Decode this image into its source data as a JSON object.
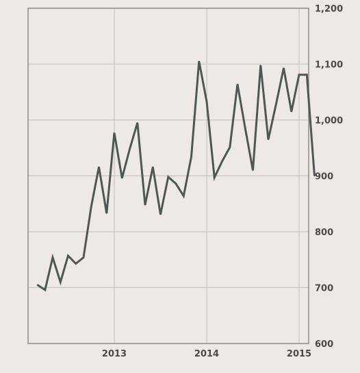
{
  "chart_data": {
    "type": "line",
    "title": "",
    "xlabel": "",
    "ylabel": "",
    "x_ticks": [
      "2013",
      "2014",
      "2015"
    ],
    "y_ticks": [
      "600",
      "700",
      "800",
      "900",
      "1,000",
      "1,100",
      "1,200"
    ],
    "ylim": [
      600,
      1200
    ],
    "grid": true,
    "y_axis_position": "right",
    "line_color": "#4e5753",
    "series": [
      {
        "values": [
          {
            "x": "2012-03",
            "y": 705
          },
          {
            "x": "2012-04",
            "y": 696
          },
          {
            "x": "2012-05",
            "y": 754
          },
          {
            "x": "2012-06",
            "y": 710
          },
          {
            "x": "2012-07",
            "y": 757
          },
          {
            "x": "2012-08",
            "y": 743
          },
          {
            "x": "2012-09",
            "y": 754
          },
          {
            "x": "2012-10",
            "y": 845
          },
          {
            "x": "2012-11",
            "y": 916
          },
          {
            "x": "2012-12",
            "y": 833
          },
          {
            "x": "2013-01",
            "y": 977
          },
          {
            "x": "2013-02",
            "y": 896
          },
          {
            "x": "2013-03",
            "y": 948
          },
          {
            "x": "2013-04",
            "y": 995
          },
          {
            "x": "2013-05",
            "y": 848
          },
          {
            "x": "2013-06",
            "y": 916
          },
          {
            "x": "2013-07",
            "y": 831
          },
          {
            "x": "2013-08",
            "y": 898
          },
          {
            "x": "2013-09",
            "y": 886
          },
          {
            "x": "2013-10",
            "y": 864
          },
          {
            "x": "2013-11",
            "y": 934
          },
          {
            "x": "2013-12",
            "y": 1105
          },
          {
            "x": "2014-01",
            "y": 1033
          },
          {
            "x": "2014-02",
            "y": 897
          },
          {
            "x": "2014-03",
            "y": 926
          },
          {
            "x": "2014-04",
            "y": 951
          },
          {
            "x": "2014-05",
            "y": 1064
          },
          {
            "x": "2014-06",
            "y": 985
          },
          {
            "x": "2014-07",
            "y": 910
          },
          {
            "x": "2014-08",
            "y": 1098
          },
          {
            "x": "2014-09",
            "y": 965
          },
          {
            "x": "2014-10",
            "y": 1028
          },
          {
            "x": "2014-11",
            "y": 1093
          },
          {
            "x": "2014-12",
            "y": 1015
          },
          {
            "x": "2015-01",
            "y": 1081
          },
          {
            "x": "2015-02",
            "y": 1081
          },
          {
            "x": "2015-03",
            "y": 900
          }
        ]
      }
    ]
  }
}
